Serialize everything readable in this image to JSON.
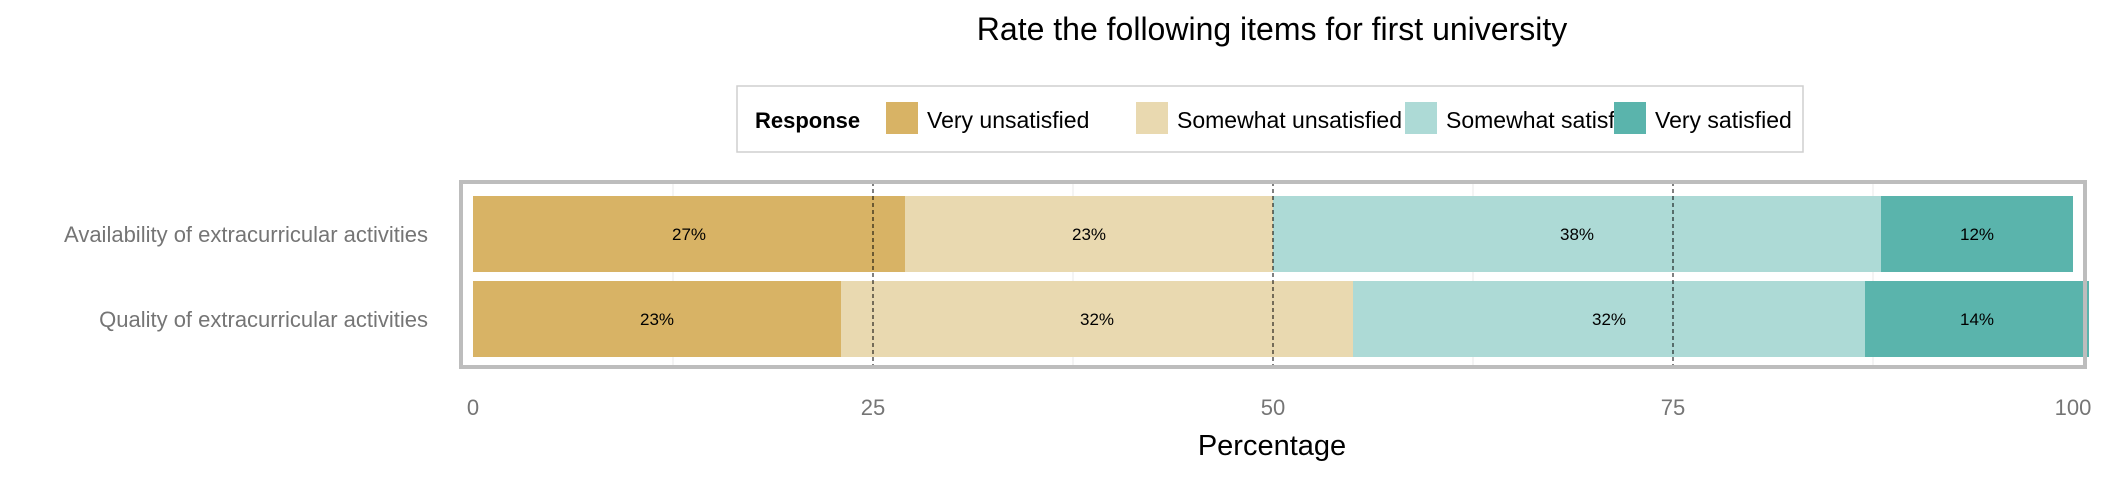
{
  "chart_data": {
    "type": "bar",
    "orientation": "horizontal",
    "stacked": true,
    "title": "Rate the following items for first university",
    "xlabel": "Percentage",
    "ylabel": "",
    "xlim": [
      0,
      100
    ],
    "xticks": [
      "0",
      "25",
      "50",
      "75",
      "100"
    ],
    "grid": true,
    "legend": {
      "title": "Response",
      "position": "top"
    },
    "categories": [
      "Availability of extracurricular activities",
      "Quality of extracurricular activities"
    ],
    "series": [
      {
        "name": "Very unsatisfied",
        "color": "#D8B365",
        "values": [
          27,
          23
        ],
        "labels": [
          "27%",
          "23%"
        ]
      },
      {
        "name": "Somewhat unsatisfied",
        "color": "#E9D9B0",
        "values": [
          23,
          32
        ],
        "labels": [
          "23%",
          "32%"
        ]
      },
      {
        "name": "Somewhat satisfied",
        "color": "#ADDAD6",
        "values": [
          38,
          32
        ],
        "labels": [
          "38%",
          "32%"
        ]
      },
      {
        "name": "Very satisfied",
        "color": "#5AB4AC",
        "values": [
          12,
          14
        ],
        "labels": [
          "12%",
          "14%"
        ]
      }
    ],
    "reference_lines": [
      25,
      50,
      75
    ]
  }
}
